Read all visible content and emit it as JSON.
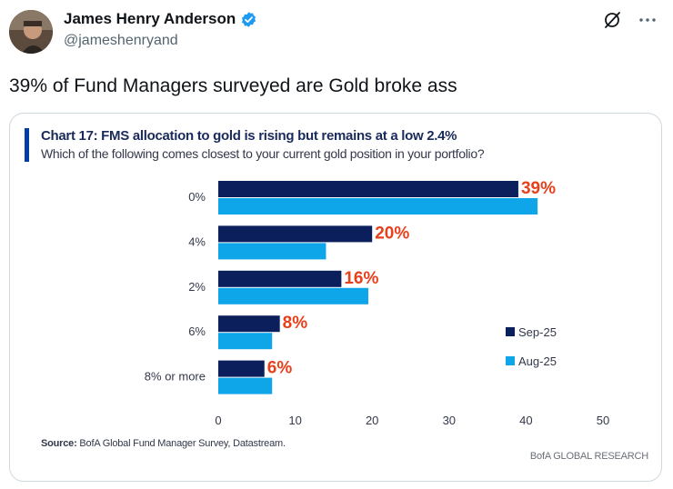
{
  "post": {
    "author_name": "James Henry Anderson",
    "handle": "@jameshenryand",
    "text": "39% of Fund Managers surveyed are Gold broke ass"
  },
  "chart_card": {
    "title": "Chart 17: FMS allocation to gold is rising but remains at a low 2.4%",
    "subtitle": "Which of the following comes closest to your current gold position in your portfolio?",
    "source_label": "Source:",
    "source_text": "BofA Global Fund Manager Survey, Datastream.",
    "brand": "BofA GLOBAL RESEARCH"
  },
  "colors": {
    "sep": "#0a1f5c",
    "aug": "#0ea5e9",
    "label": "#e8401c",
    "title_bar": "#003da5",
    "verified": "#1d9bf0"
  },
  "icons": {
    "verified": "verified-badge-icon",
    "grok": "grok-icon",
    "more": "more-icon"
  },
  "chart_data": {
    "type": "bar",
    "orientation": "horizontal",
    "title": "Chart 17: FMS allocation to gold is rising but remains at a low 2.4%",
    "subtitle": "Which of the following comes closest to your current gold position in your portfolio?",
    "categories": [
      "0%",
      "4%",
      "2%",
      "6%",
      "8% or more"
    ],
    "series": [
      {
        "name": "Sep-25",
        "values": [
          39,
          20,
          16,
          8,
          6
        ]
      },
      {
        "name": "Aug-25",
        "values": [
          41.5,
          14,
          19.5,
          7,
          7
        ]
      }
    ],
    "data_labels": [
      "39%",
      "20%",
      "16%",
      "8%",
      "6%"
    ],
    "xlim": [
      0,
      50
    ],
    "xticks": [
      0,
      10,
      20,
      30,
      40,
      50
    ],
    "legend_position": "right"
  }
}
